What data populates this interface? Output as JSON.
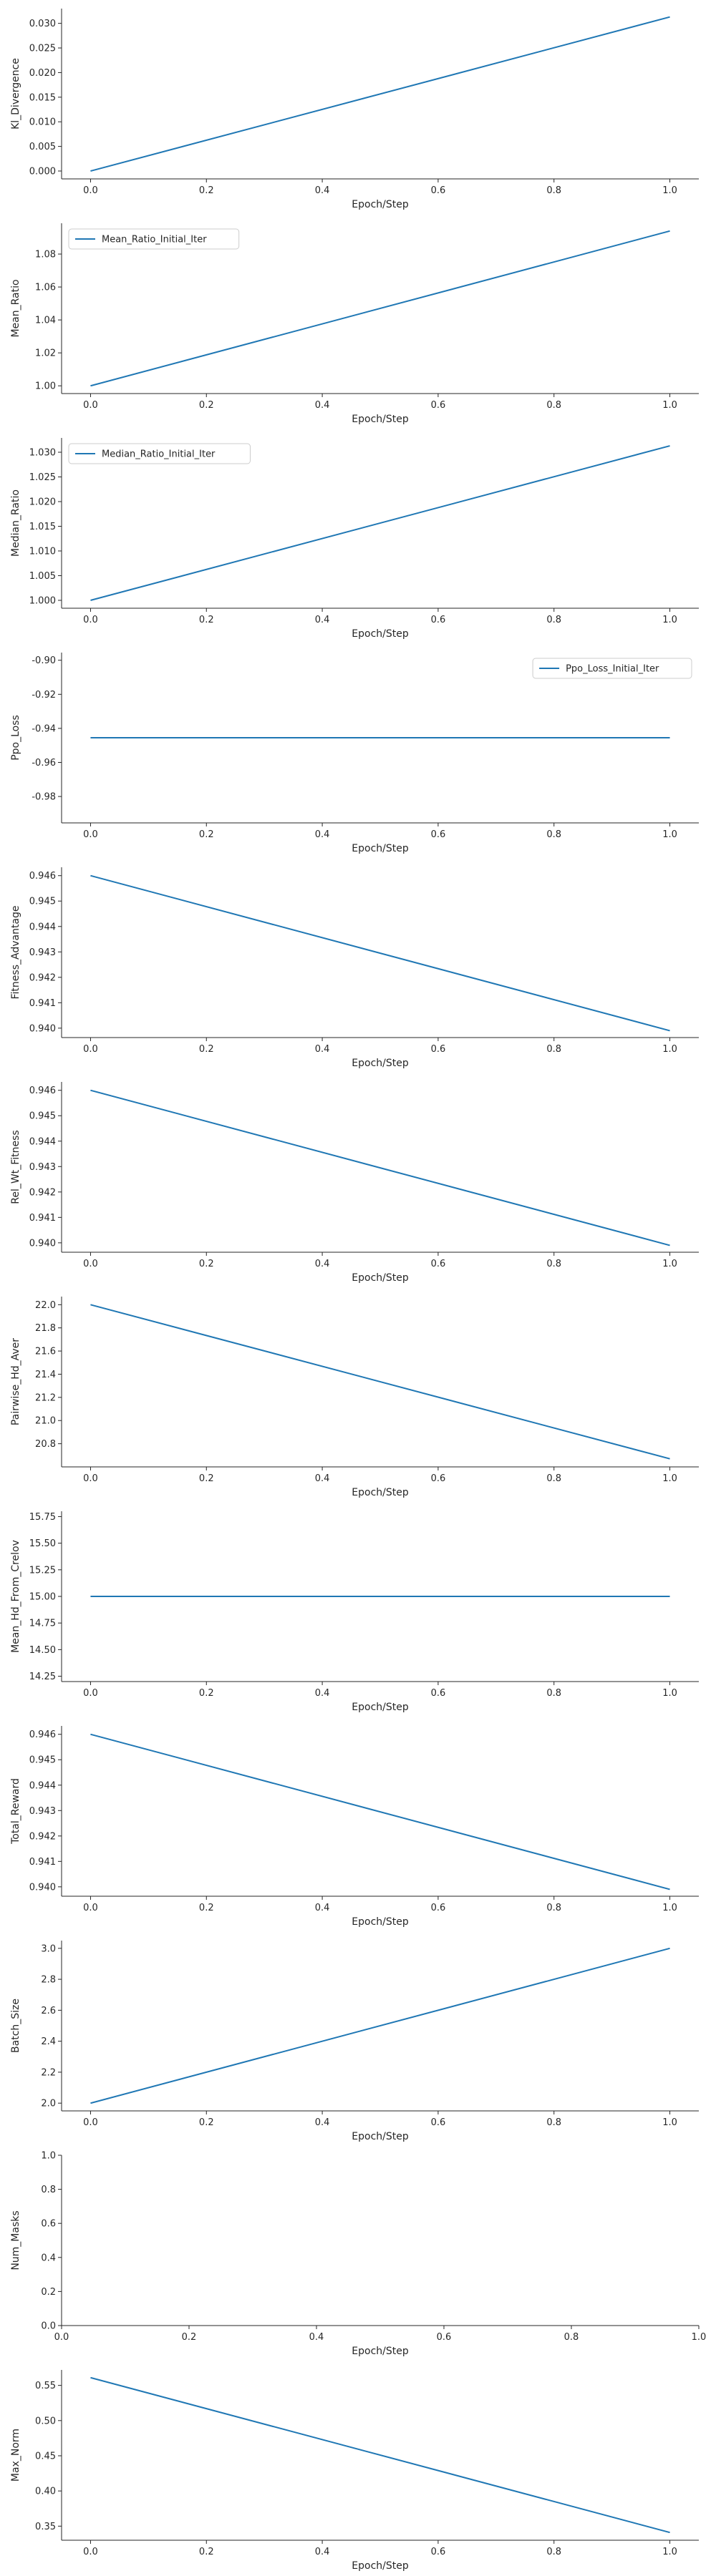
{
  "chart_data": [
    {
      "type": "line",
      "xlabel": "Epoch/Step",
      "ylabel": "Kl_Divergence",
      "xlim": [
        -0.05,
        1.05
      ],
      "ylim": [
        -0.0016,
        0.033
      ],
      "xticks": [
        "0.0",
        "0.2",
        "0.4",
        "0.6",
        "0.8",
        "1.0"
      ],
      "yticks": [
        "0.000",
        "0.005",
        "0.010",
        "0.015",
        "0.020",
        "0.025",
        "0.030"
      ],
      "series": [
        {
          "name": "",
          "color": "#1f77b4",
          "x": [
            0.0,
            1.0
          ],
          "y": [
            0.0,
            0.0313
          ]
        }
      ],
      "legend": null,
      "grid": false
    },
    {
      "type": "line",
      "xlabel": "Epoch/Step",
      "ylabel": "Mean_Ratio",
      "xlim": [
        -0.05,
        1.05
      ],
      "ylim": [
        0.9953,
        1.0987
      ],
      "xticks": [
        "0.0",
        "0.2",
        "0.4",
        "0.6",
        "0.8",
        "1.0"
      ],
      "yticks": [
        "1.00",
        "1.02",
        "1.04",
        "1.06",
        "1.08"
      ],
      "series": [
        {
          "name": "Mean_Ratio_Initial_Iter",
          "color": "#1f77b4",
          "x": [
            0.0,
            1.0
          ],
          "y": [
            1.0,
            1.094
          ]
        }
      ],
      "legend": "upper left",
      "grid": false
    },
    {
      "type": "line",
      "xlabel": "Epoch/Step",
      "ylabel": "Median_Ratio",
      "xlim": [
        -0.05,
        1.05
      ],
      "ylim": [
        0.9984,
        1.0329
      ],
      "xticks": [
        "0.0",
        "0.2",
        "0.4",
        "0.6",
        "0.8",
        "1.0"
      ],
      "yticks": [
        "1.000",
        "1.005",
        "1.010",
        "1.015",
        "1.020",
        "1.025",
        "1.030"
      ],
      "series": [
        {
          "name": "Median_Ratio_Initial_Iter",
          "color": "#1f77b4",
          "x": [
            0.0,
            1.0
          ],
          "y": [
            1.0,
            1.0313
          ]
        }
      ],
      "legend": "upper left",
      "grid": false
    },
    {
      "type": "line",
      "xlabel": "Epoch/Step",
      "ylabel": "Ppo_Loss",
      "xlim": [
        -0.05,
        1.05
      ],
      "ylim": [
        -0.9955,
        -0.8955
      ],
      "xticks": [
        "0.0",
        "0.2",
        "0.4",
        "0.6",
        "0.8",
        "1.0"
      ],
      "yticks": [
        "-0.98",
        "-0.96",
        "-0.94",
        "-0.92",
        "-0.90"
      ],
      "series": [
        {
          "name": "Ppo_Loss_Initial_Iter",
          "color": "#1f77b4",
          "x": [
            0.0,
            1.0
          ],
          "y": [
            -0.9455,
            -0.9455
          ]
        }
      ],
      "legend": "upper right",
      "grid": false
    },
    {
      "type": "line",
      "xlabel": "Epoch/Step",
      "ylabel": "Fitness_Advantage",
      "xlim": [
        -0.05,
        1.05
      ],
      "ylim": [
        0.93963,
        0.94633
      ],
      "xticks": [
        "0.0",
        "0.2",
        "0.4",
        "0.6",
        "0.8",
        "1.0"
      ],
      "yticks": [
        "0.940",
        "0.941",
        "0.942",
        "0.943",
        "0.944",
        "0.945",
        "0.946"
      ],
      "series": [
        {
          "name": "",
          "color": "#1f77b4",
          "x": [
            0.0,
            1.0
          ],
          "y": [
            0.946,
            0.9399
          ]
        }
      ],
      "legend": null,
      "grid": false
    },
    {
      "type": "line",
      "xlabel": "Epoch/Step",
      "ylabel": "Rel_Wt_Fitness",
      "xlim": [
        -0.05,
        1.05
      ],
      "ylim": [
        0.93963,
        0.94633
      ],
      "xticks": [
        "0.0",
        "0.2",
        "0.4",
        "0.6",
        "0.8",
        "1.0"
      ],
      "yticks": [
        "0.940",
        "0.941",
        "0.942",
        "0.943",
        "0.944",
        "0.945",
        "0.946"
      ],
      "series": [
        {
          "name": "",
          "color": "#1f77b4",
          "x": [
            0.0,
            1.0
          ],
          "y": [
            0.946,
            0.9399
          ]
        }
      ],
      "legend": null,
      "grid": false
    },
    {
      "type": "line",
      "xlabel": "Epoch/Step",
      "ylabel": "Pairwise_Hd_Aver",
      "xlim": [
        -0.05,
        1.05
      ],
      "ylim": [
        20.6,
        22.07
      ],
      "xticks": [
        "0.0",
        "0.2",
        "0.4",
        "0.6",
        "0.8",
        "1.0"
      ],
      "yticks": [
        "20.8",
        "21.0",
        "21.2",
        "21.4",
        "21.6",
        "21.8",
        "22.0"
      ],
      "series": [
        {
          "name": "",
          "color": "#1f77b4",
          "x": [
            0.0,
            1.0
          ],
          "y": [
            22.0,
            20.67
          ]
        }
      ],
      "legend": null,
      "grid": false
    },
    {
      "type": "line",
      "xlabel": "Epoch/Step",
      "ylabel": "Mean_Hd_From_Crelov",
      "xlim": [
        -0.05,
        1.05
      ],
      "ylim": [
        14.2,
        15.8
      ],
      "xticks": [
        "0.0",
        "0.2",
        "0.4",
        "0.6",
        "0.8",
        "1.0"
      ],
      "yticks": [
        "14.25",
        "14.50",
        "14.75",
        "15.00",
        "15.25",
        "15.50",
        "15.75"
      ],
      "series": [
        {
          "name": "",
          "color": "#1f77b4",
          "x": [
            0.0,
            1.0
          ],
          "y": [
            15.0,
            15.0
          ]
        }
      ],
      "legend": null,
      "grid": false
    },
    {
      "type": "line",
      "xlabel": "Epoch/Step",
      "ylabel": "Total_Reward",
      "xlim": [
        -0.05,
        1.05
      ],
      "ylim": [
        0.93963,
        0.94633
      ],
      "xticks": [
        "0.0",
        "0.2",
        "0.4",
        "0.6",
        "0.8",
        "1.0"
      ],
      "yticks": [
        "0.940",
        "0.941",
        "0.942",
        "0.943",
        "0.944",
        "0.945",
        "0.946"
      ],
      "series": [
        {
          "name": "",
          "color": "#1f77b4",
          "x": [
            0.0,
            1.0
          ],
          "y": [
            0.946,
            0.9399
          ]
        }
      ],
      "legend": null,
      "grid": false
    },
    {
      "type": "line",
      "xlabel": "Epoch/Step",
      "ylabel": "Batch_Size",
      "xlim": [
        -0.05,
        1.05
      ],
      "ylim": [
        1.95,
        3.05
      ],
      "xticks": [
        "0.0",
        "0.2",
        "0.4",
        "0.6",
        "0.8",
        "1.0"
      ],
      "yticks": [
        "2.0",
        "2.2",
        "2.4",
        "2.6",
        "2.8",
        "3.0"
      ],
      "series": [
        {
          "name": "",
          "color": "#1f77b4",
          "x": [
            0.0,
            1.0
          ],
          "y": [
            2.0,
            3.0
          ]
        }
      ],
      "legend": null,
      "grid": false
    },
    {
      "type": "line",
      "xlabel": "Epoch/Step",
      "ylabel": "Num_Masks",
      "xlim": [
        0.0,
        1.0
      ],
      "ylim": [
        0.0,
        1.0
      ],
      "xticks": [
        "0.0",
        "0.2",
        "0.4",
        "0.6",
        "0.8",
        "1.0"
      ],
      "yticks": [
        "0.0",
        "0.2",
        "0.4",
        "0.6",
        "0.8",
        "1.0"
      ],
      "series": [],
      "legend": null,
      "grid": false
    },
    {
      "type": "line",
      "xlabel": "Epoch/Step",
      "ylabel": "Max_Norm",
      "xlim": [
        -0.05,
        1.05
      ],
      "ylim": [
        0.33,
        0.572
      ],
      "xticks": [
        "0.0",
        "0.2",
        "0.4",
        "0.6",
        "0.8",
        "1.0"
      ],
      "yticks": [
        "0.35",
        "0.40",
        "0.45",
        "0.50",
        "0.55"
      ],
      "series": [
        {
          "name": "",
          "color": "#1f77b4",
          "x": [
            0.0,
            1.0
          ],
          "y": [
            0.561,
            0.341
          ]
        }
      ],
      "legend": null,
      "grid": false
    }
  ]
}
